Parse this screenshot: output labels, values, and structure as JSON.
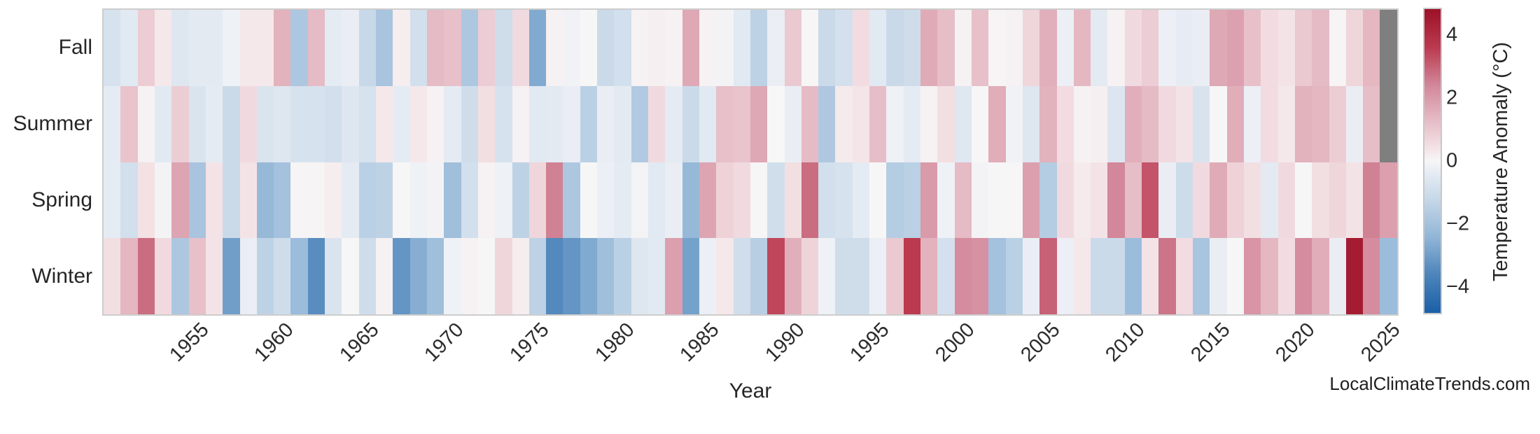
{
  "watermark": "LocalClimateTrends.com",
  "chart_data": {
    "type": "heatmap",
    "xlabel": "Year",
    "rows": [
      "Fall",
      "Summer",
      "Spring",
      "Winter"
    ],
    "year_start": 1950,
    "year_end": 2025,
    "x_ticks": [
      1955,
      1960,
      1965,
      1970,
      1975,
      1980,
      1985,
      1990,
      1995,
      2000,
      2005,
      2010,
      2015,
      2020,
      2025
    ],
    "colorbar": {
      "label": "Temperature Anomaly (°C)",
      "ticks": [
        4,
        2,
        0,
        -2,
        -4
      ],
      "vmin": -4.82,
      "vmax": 4.82
    },
    "missing_color": "#7f7f7f",
    "palette_stops": [
      {
        "v": -4.82,
        "c": "#1a5fa8"
      },
      {
        "v": -3.6,
        "c": "#4d85bb"
      },
      {
        "v": -2.4,
        "c": "#92b6d7"
      },
      {
        "v": -1.2,
        "c": "#c7d8e8"
      },
      {
        "v": -0.4,
        "c": "#e5ebf3"
      },
      {
        "v": 0.0,
        "c": "#f7f6f7"
      },
      {
        "v": 0.4,
        "c": "#f4e3e6"
      },
      {
        "v": 1.2,
        "c": "#e7c0c9"
      },
      {
        "v": 2.4,
        "c": "#d2879a"
      },
      {
        "v": 3.6,
        "c": "#bb3a50"
      },
      {
        "v": 4.82,
        "c": "#9c1127"
      }
    ],
    "series": [
      {
        "name": "Fall",
        "values": [
          -0.8,
          -0.5,
          0.9,
          0.3,
          -0.6,
          -0.45,
          -0.45,
          -0.2,
          0.3,
          0.3,
          1.5,
          -1.8,
          1.3,
          -0.4,
          -0.3,
          -1.2,
          -1.9,
          0.2,
          -0.9,
          1.3,
          1.2,
          -1.8,
          0.9,
          -1.0,
          0.6,
          -2.7,
          0.1,
          -0.15,
          0.0,
          -1.1,
          -0.9,
          0.1,
          0.15,
          0.1,
          1.7,
          0.1,
          -0.1,
          -0.5,
          -1.4,
          -0.3,
          1.0,
          0.0,
          -1.1,
          -0.85,
          0.55,
          -0.5,
          -1.15,
          -1.0,
          1.65,
          1.25,
          0.1,
          1.2,
          0.05,
          0.1,
          0.7,
          1.55,
          -0.25,
          1.4,
          -0.45,
          0.1,
          0.6,
          0.9,
          -0.25,
          -0.35,
          -0.3,
          1.7,
          1.85,
          1.2,
          0.55,
          0.4,
          1.0,
          1.3,
          0.05,
          0.7,
          1.4,
          null
        ]
      },
      {
        "name": "Summer",
        "values": [
          -0.4,
          1.1,
          0.1,
          -0.5,
          0.9,
          -0.7,
          -0.4,
          -1.1,
          0.6,
          -0.7,
          -0.6,
          -0.8,
          -0.8,
          -0.9,
          -0.6,
          -0.8,
          0.3,
          -0.4,
          0.3,
          0.1,
          -0.4,
          -1.0,
          0.5,
          -0.8,
          0.1,
          -0.5,
          -0.45,
          -0.3,
          -1.5,
          -0.3,
          -0.45,
          -1.7,
          0.6,
          -0.4,
          -1.1,
          -0.5,
          1.2,
          1.1,
          1.7,
          0.0,
          -0.3,
          1.3,
          -1.75,
          0.25,
          0.35,
          1.25,
          -0.2,
          -0.4,
          0.1,
          0.5,
          -0.55,
          0.0,
          1.6,
          -0.15,
          -0.6,
          1.5,
          0.55,
          0.1,
          0.15,
          -0.65,
          1.55,
          1.3,
          0.6,
          0.4,
          -0.75,
          0.0,
          1.6,
          -0.25,
          0.55,
          0.3,
          1.5,
          1.4,
          0.9,
          -0.3,
          1.25,
          null
        ]
      },
      {
        "name": "Spring",
        "values": [
          -0.4,
          -0.9,
          0.45,
          -0.1,
          1.8,
          -1.9,
          0.4,
          -1.1,
          0.4,
          -2.3,
          -2.0,
          0.05,
          0.05,
          0.2,
          -0.4,
          -1.5,
          -1.4,
          0.0,
          -0.2,
          -0.1,
          -2.1,
          -0.9,
          0.1,
          -0.2,
          -1.4,
          0.7,
          2.5,
          -1.8,
          0.0,
          -0.25,
          -0.4,
          -0.1,
          -0.5,
          -0.3,
          -2.3,
          1.8,
          0.8,
          0.6,
          0.0,
          -0.95,
          0.5,
          2.8,
          -0.9,
          -0.8,
          -0.4,
          0.0,
          -1.6,
          -1.5,
          2.0,
          -0.2,
          1.3,
          -0.1,
          0.0,
          0.0,
          1.9,
          -1.6,
          0.6,
          0.25,
          0.4,
          2.4,
          1.25,
          3.2,
          -0.3,
          -1.05,
          0.6,
          1.65,
          0.8,
          0.5,
          -0.45,
          0.6,
          0.0,
          0.5,
          0.7,
          0.4,
          2.5,
          1.9
        ]
      },
      {
        "name": "Winter",
        "values": [
          0.5,
          1.4,
          2.8,
          0.6,
          -1.8,
          1.2,
          0.4,
          -3.0,
          -0.3,
          -1.4,
          -1.0,
          -2.2,
          -3.4,
          -0.7,
          0.0,
          -1.0,
          0.1,
          -3.2,
          -2.6,
          -2.1,
          -0.2,
          0.1,
          0.0,
          0.7,
          0.2,
          -1.4,
          -3.5,
          -3.2,
          -2.7,
          -2.1,
          -1.5,
          -0.6,
          -0.5,
          1.9,
          -2.9,
          -0.25,
          0.3,
          -0.95,
          -1.55,
          3.4,
          1.55,
          0.75,
          -0.2,
          -1.0,
          -1.0,
          -0.25,
          1.0,
          3.6,
          1.5,
          -0.85,
          2.3,
          2.2,
          -2.0,
          -1.5,
          -0.3,
          3.0,
          -0.25,
          0.3,
          -1.1,
          -1.1,
          -2.2,
          0.4,
          2.7,
          0.55,
          -1.9,
          -0.3,
          0.0,
          2.1,
          1.4,
          0.55,
          2.3,
          1.6,
          -0.3,
          4.5,
          2.3,
          -2.2
        ]
      }
    ]
  }
}
